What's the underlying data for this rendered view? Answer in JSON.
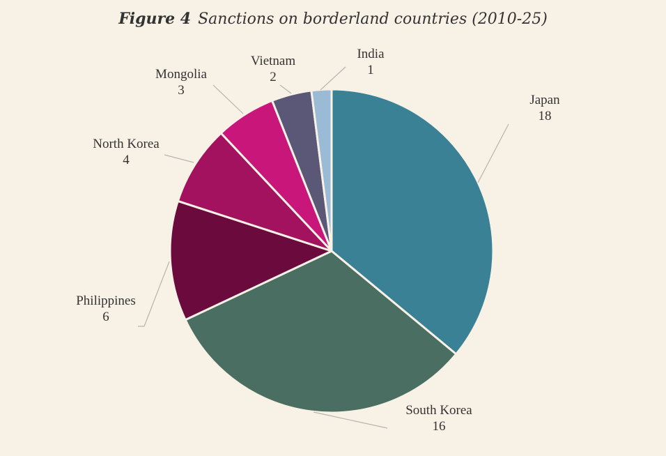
{
  "figure_label": "Figure 4",
  "title_text": "Sanctions on borderland countries (2010-25)",
  "chart_data": {
    "type": "pie",
    "title": "Sanctions on borderland countries (2010-25)",
    "start_angle_deg": 0,
    "direction": "clockwise",
    "slices": [
      {
        "label": "Japan",
        "value": 18,
        "color": "#3a8196"
      },
      {
        "label": "South Korea",
        "value": 16,
        "color": "#4b6e62"
      },
      {
        "label": "Philippines",
        "value": 6,
        "color": "#6b0a3d"
      },
      {
        "label": "North Korea",
        "value": 4,
        "color": "#a2125e"
      },
      {
        "label": "Mongolia",
        "value": 3,
        "color": "#c9167a"
      },
      {
        "label": "Vietnam",
        "value": 2,
        "color": "#5b5777"
      },
      {
        "label": "India",
        "value": 1,
        "color": "#9bbad6"
      }
    ],
    "slice_border_color": "#f8f1e6",
    "leader_line_color": "#b8b3ab"
  }
}
